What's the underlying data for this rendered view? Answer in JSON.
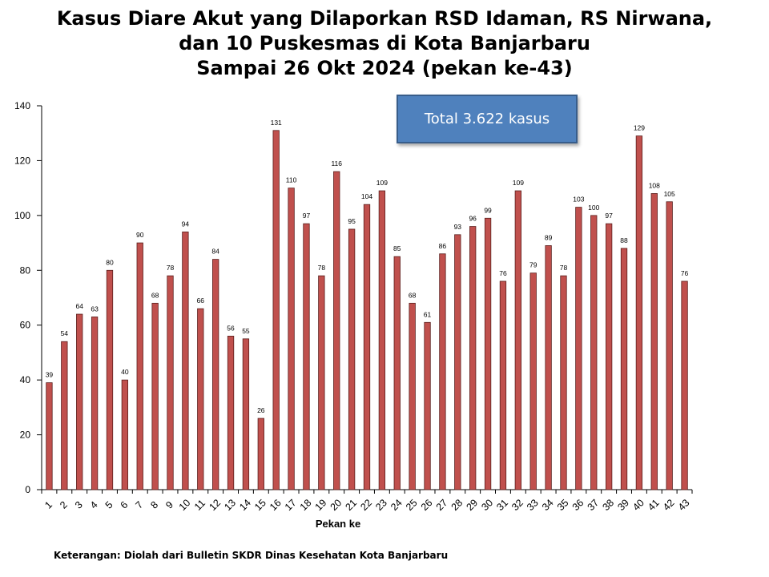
{
  "title_lines": [
    "Kasus Diare Akut yang Dilaporkan RSD Idaman, RS Nirwana,",
    "dan 10 Puskesmas di Kota Banjarbaru",
    "Sampai 26 Okt 2024 (pekan ke-43)"
  ],
  "annotation": "Total 3.622 kasus",
  "footnote": "Keterangan: Diolah dari Bulletin SKDR Dinas Kesehatan Kota Banjarbaru",
  "colors": {
    "bar_fill": "#c0504d",
    "bar_stroke": "#5a1f1d",
    "box_fill": "#4f81bd"
  },
  "chart_data": {
    "type": "bar",
    "xlabel": "Pekan ke",
    "ylabel": "",
    "ylim": [
      0,
      140
    ],
    "yticks": [
      0,
      20,
      40,
      60,
      80,
      100,
      120,
      140
    ],
    "grid": false,
    "categories": [
      "1",
      "2",
      "3",
      "4",
      "5",
      "6",
      "7",
      "8",
      "9",
      "10",
      "11",
      "12",
      "13",
      "14",
      "15",
      "16",
      "17",
      "18",
      "19",
      "20",
      "21",
      "22",
      "23",
      "24",
      "25",
      "26",
      "27",
      "28",
      "29",
      "30",
      "31",
      "32",
      "33",
      "34",
      "35",
      "36",
      "37",
      "38",
      "39",
      "40",
      "41",
      "42",
      "43"
    ],
    "values": [
      39,
      54,
      64,
      63,
      80,
      40,
      90,
      68,
      78,
      94,
      66,
      84,
      56,
      55,
      26,
      131,
      110,
      97,
      78,
      116,
      95,
      104,
      109,
      85,
      68,
      61,
      86,
      93,
      96,
      99,
      76,
      109,
      79,
      89,
      78,
      103,
      100,
      97,
      88,
      129,
      108,
      105,
      76
    ]
  }
}
